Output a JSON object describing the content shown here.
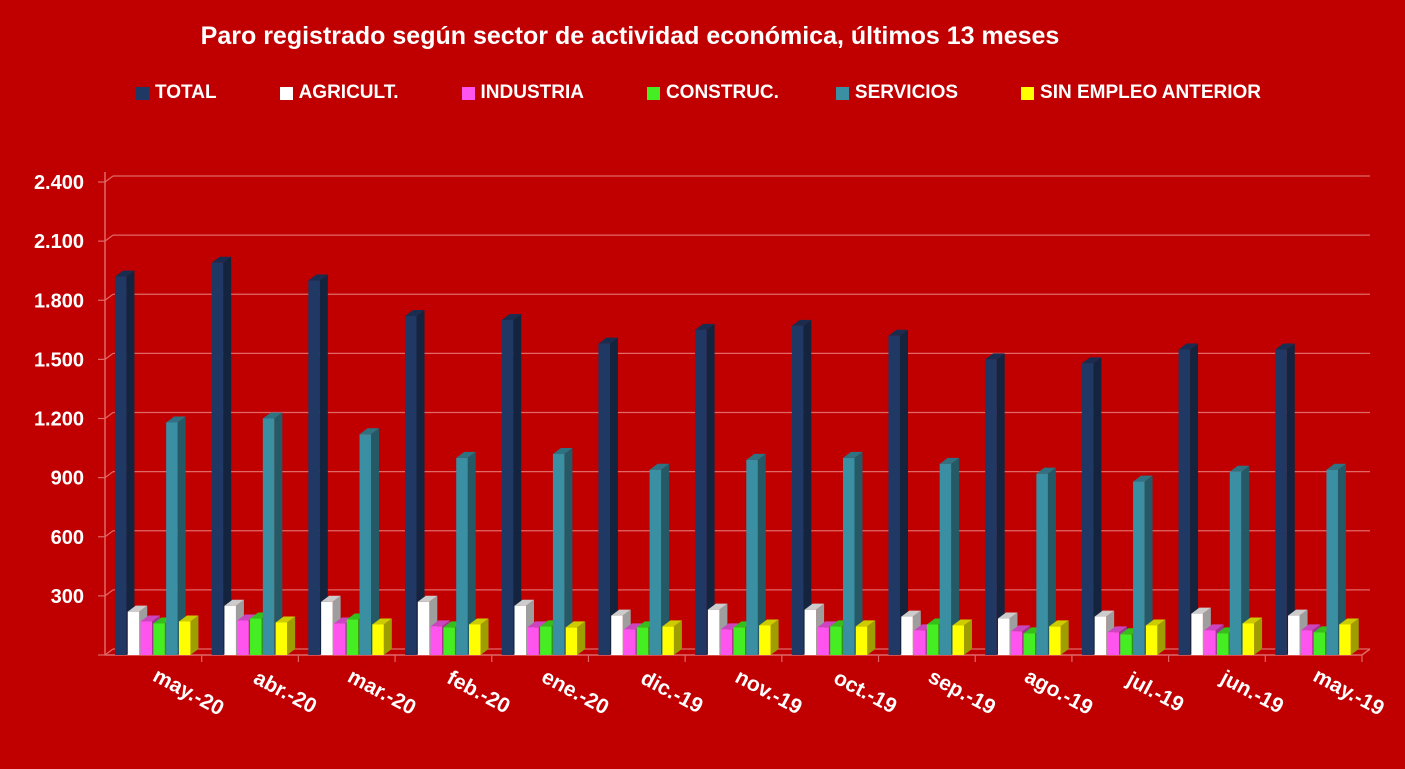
{
  "chart_data": {
    "type": "bar",
    "title": "Paro registrado según sector de actividad económica, últimos 13 meses",
    "categories": [
      "may.-20",
      "abr.-20",
      "mar.-20",
      "feb.-20",
      "ene.-20",
      "dic.-19",
      "nov.-19",
      "oct.-19",
      "sep.-19",
      "ago.-19",
      "jul.-19",
      "jun.-19",
      "may.-19"
    ],
    "ylim": [
      0,
      2400
    ],
    "yticks": [
      "2.400",
      "2.100",
      "1.800",
      "1.500",
      "1.200",
      "900",
      "600",
      "300",
      ""
    ],
    "grid": true,
    "legend_position": "top",
    "series": [
      {
        "name": "TOTAL",
        "color": "#203864",
        "values": [
          1920,
          1990,
          1900,
          1720,
          1700,
          1580,
          1650,
          1670,
          1620,
          1500,
          1480,
          1550,
          1550
        ]
      },
      {
        "name": "AGRICULT.",
        "color": "#ffffff",
        "values": [
          220,
          250,
          270,
          270,
          250,
          200,
          230,
          230,
          195,
          185,
          195,
          210,
          200
        ]
      },
      {
        "name": "INDUSTRIA",
        "color": "#ff55ee",
        "values": [
          170,
          175,
          160,
          145,
          140,
          130,
          130,
          140,
          125,
          120,
          115,
          125,
          125
        ]
      },
      {
        "name": "CONSTRUC.",
        "color": "#44ee22",
        "values": [
          160,
          185,
          180,
          140,
          145,
          140,
          140,
          145,
          155,
          110,
          105,
          110,
          115
        ]
      },
      {
        "name": "SERVICIOS",
        "color": "#3b8fa3",
        "values": [
          1180,
          1200,
          1120,
          1000,
          1020,
          940,
          990,
          1000,
          970,
          920,
          880,
          930,
          940
        ]
      },
      {
        "name": "SIN EMPLEO ANTERIOR",
        "color": "#ffff00",
        "values": [
          170,
          165,
          155,
          155,
          140,
          145,
          150,
          145,
          150,
          145,
          150,
          160,
          155
        ]
      }
    ]
  }
}
